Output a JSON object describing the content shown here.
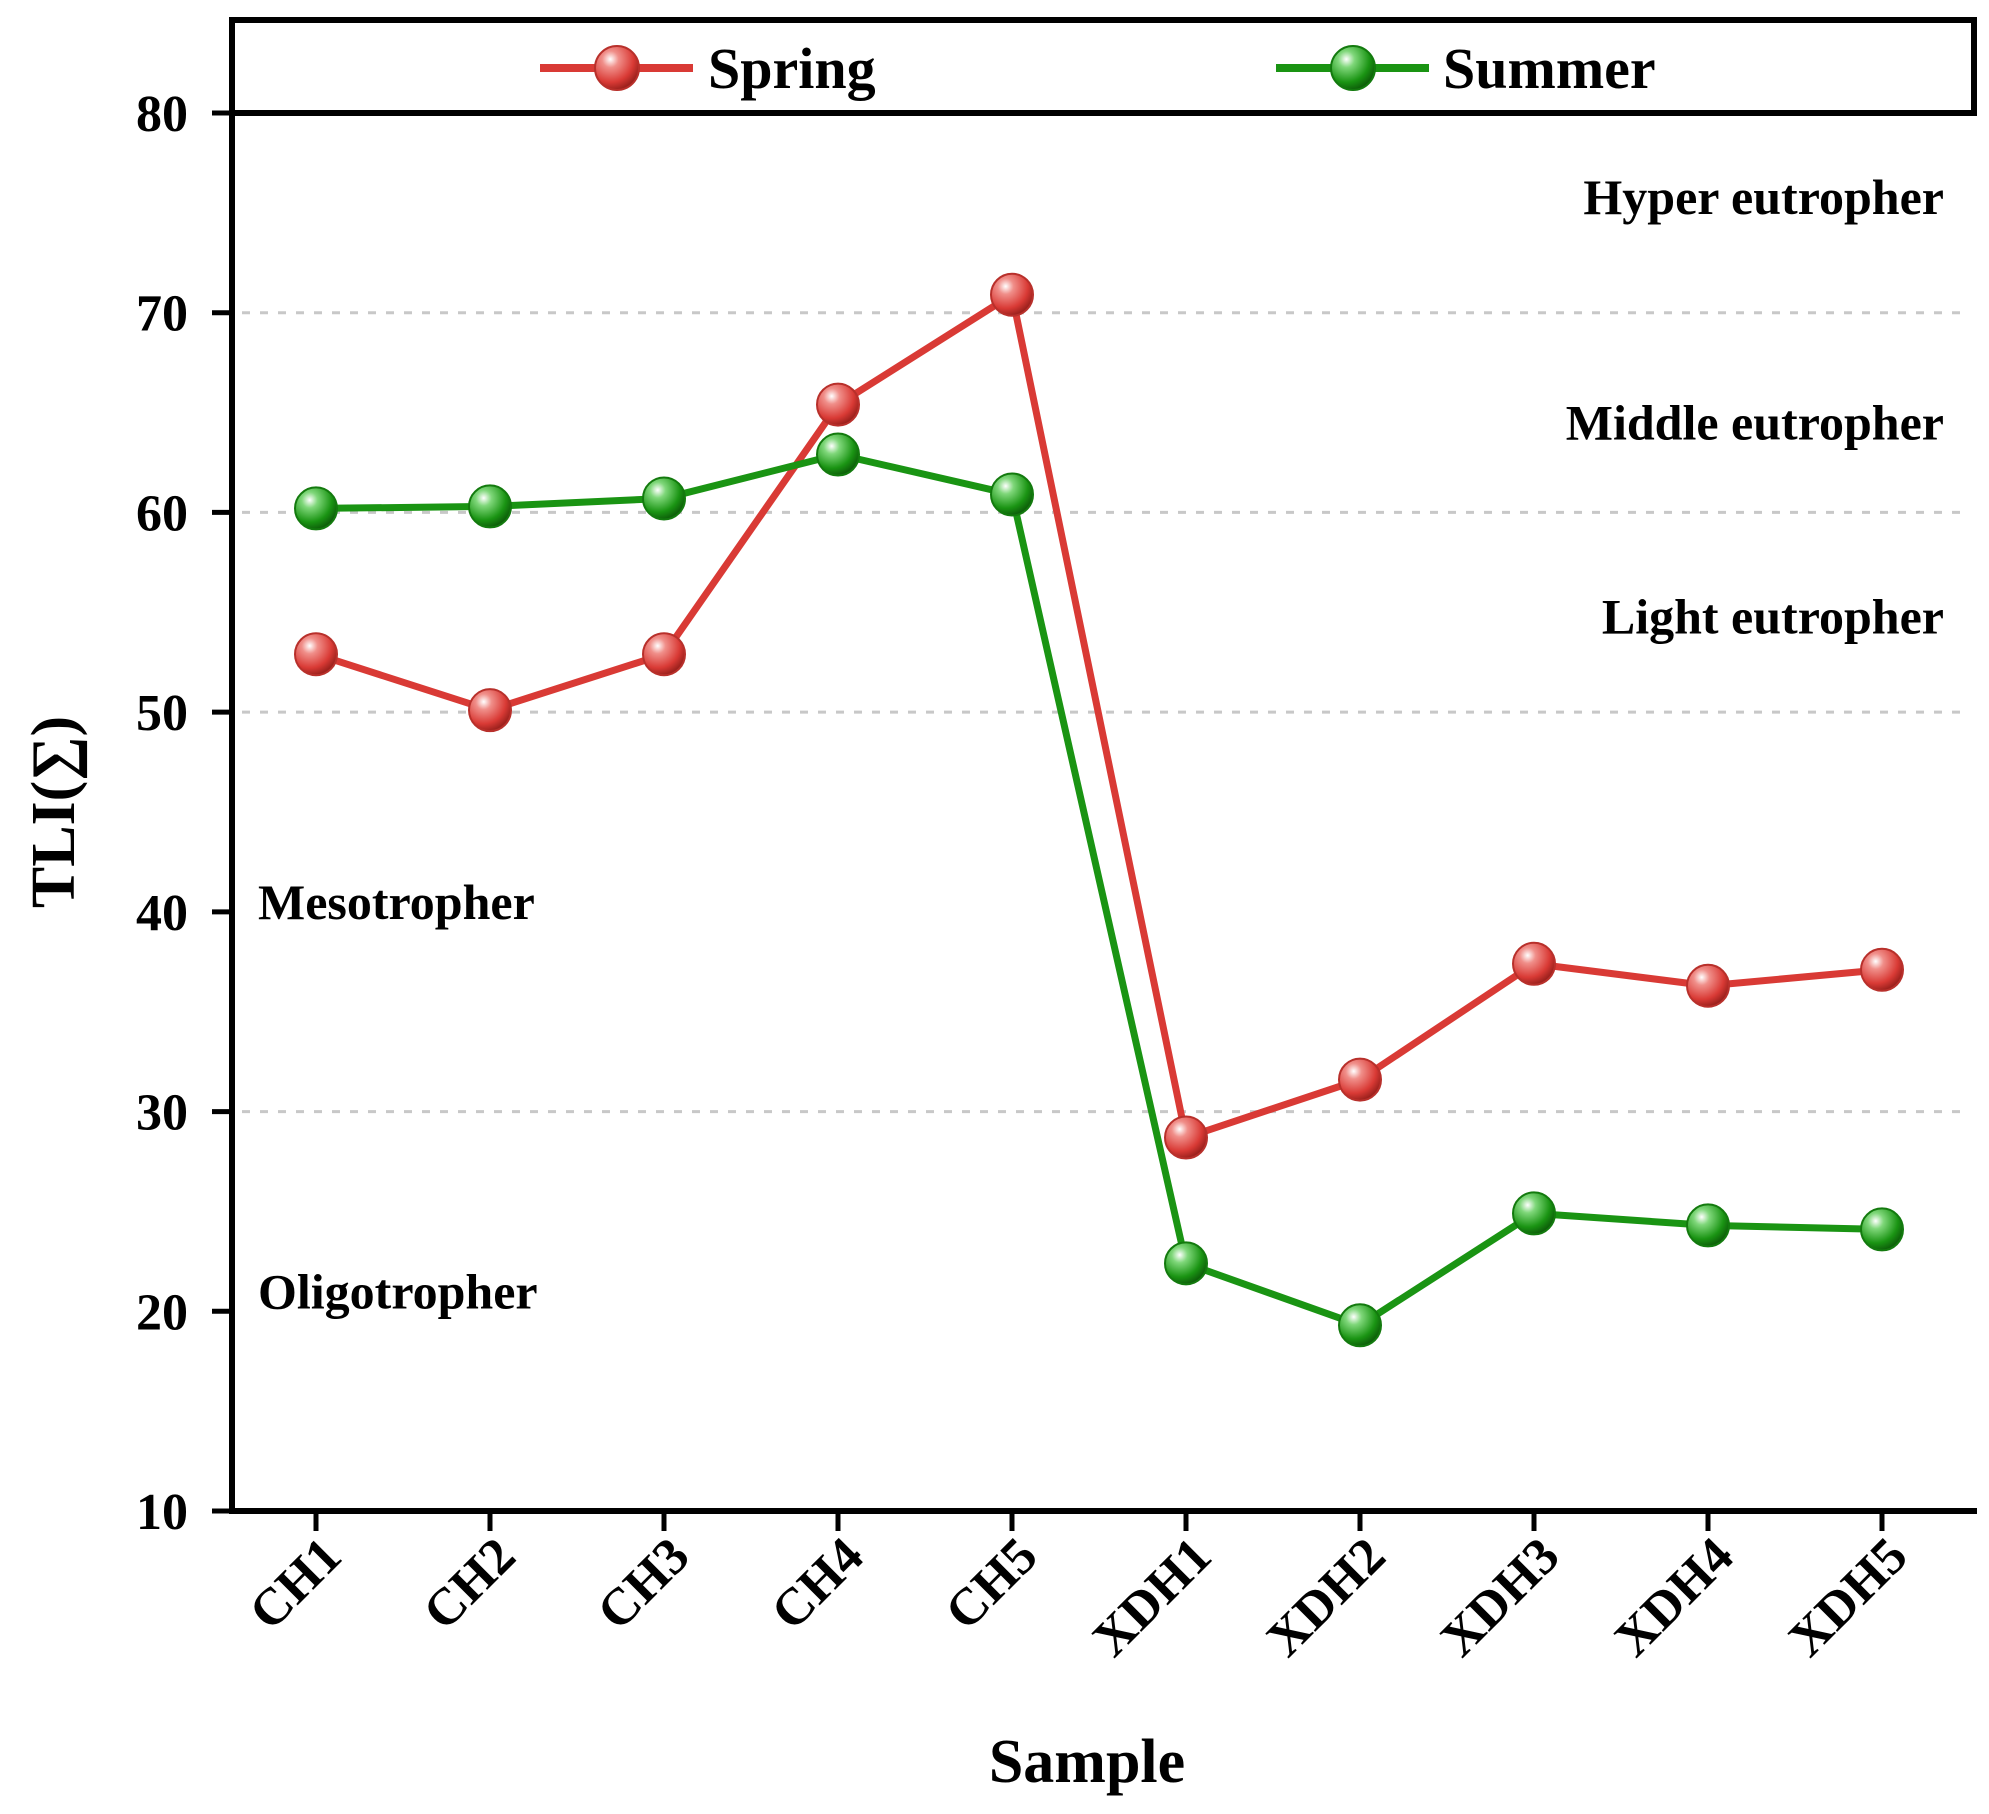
{
  "chart_data": {
    "type": "line",
    "categories": [
      "CH1",
      "CH2",
      "CH3",
      "CH4",
      "CH5",
      "XDH1",
      "XDH2",
      "XDH3",
      "XDH4",
      "XDH5"
    ],
    "series": [
      {
        "name": "Spring",
        "color": "#d93a35",
        "values": [
          52.9,
          50.1,
          52.9,
          65.4,
          70.9,
          28.7,
          31.6,
          37.4,
          36.3,
          37.1
        ]
      },
      {
        "name": "Summer",
        "color": "#1a9413",
        "values": [
          60.2,
          60.3,
          60.7,
          62.9,
          60.9,
          22.4,
          19.3,
          24.9,
          24.3,
          24.1
        ]
      }
    ],
    "xlabel": "Sample",
    "ylabel": "TLI(∑)",
    "ylim": [
      10,
      80
    ],
    "yticks": [
      "10",
      "20",
      "30",
      "40",
      "50",
      "60",
      "70",
      "80"
    ],
    "grid_lines": [
      30,
      50,
      60,
      70
    ],
    "legend_position": "top",
    "zones": [
      {
        "label": "Hyper eutropher",
        "value": 75.8,
        "align": "right"
      },
      {
        "label": "Middle eutropher",
        "value": 64.5,
        "align": "right"
      },
      {
        "label": "Light eutropher",
        "value": 54.8,
        "align": "right"
      },
      {
        "label": "Mesotropher",
        "value": 40.5,
        "align": "left"
      },
      {
        "label": "Oligotropher",
        "value": 21.0,
        "align": "left"
      }
    ]
  }
}
